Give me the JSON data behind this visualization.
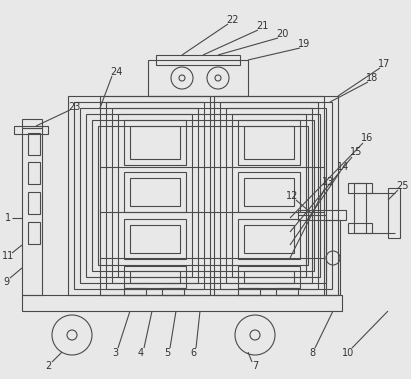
{
  "bg_color": "#e8e8e8",
  "line_color": "#4a4a4a",
  "lw": 0.8,
  "fig_width": 4.11,
  "fig_height": 3.79,
  "dpi": 100,
  "labels": [
    [
      "1",
      18,
      218
    ],
    [
      "11",
      14,
      247
    ],
    [
      "9",
      14,
      268
    ],
    [
      "2",
      52,
      358
    ],
    [
      "3",
      118,
      348
    ],
    [
      "4",
      145,
      348
    ],
    [
      "5",
      172,
      348
    ],
    [
      "6",
      198,
      348
    ],
    [
      "7",
      255,
      358
    ],
    [
      "8",
      280,
      358
    ],
    [
      "10",
      318,
      355
    ],
    [
      "12",
      310,
      196
    ],
    [
      "13",
      325,
      178
    ],
    [
      "14",
      338,
      162
    ],
    [
      "15",
      350,
      148
    ],
    [
      "16",
      363,
      133
    ],
    [
      "17",
      381,
      82
    ],
    [
      "18",
      368,
      96
    ],
    [
      "19",
      310,
      60
    ],
    [
      "20",
      283,
      42
    ],
    [
      "21",
      263,
      38
    ],
    [
      "22",
      230,
      32
    ],
    [
      "23",
      68,
      115
    ],
    [
      "24",
      115,
      82
    ],
    [
      "25",
      395,
      195
    ]
  ]
}
